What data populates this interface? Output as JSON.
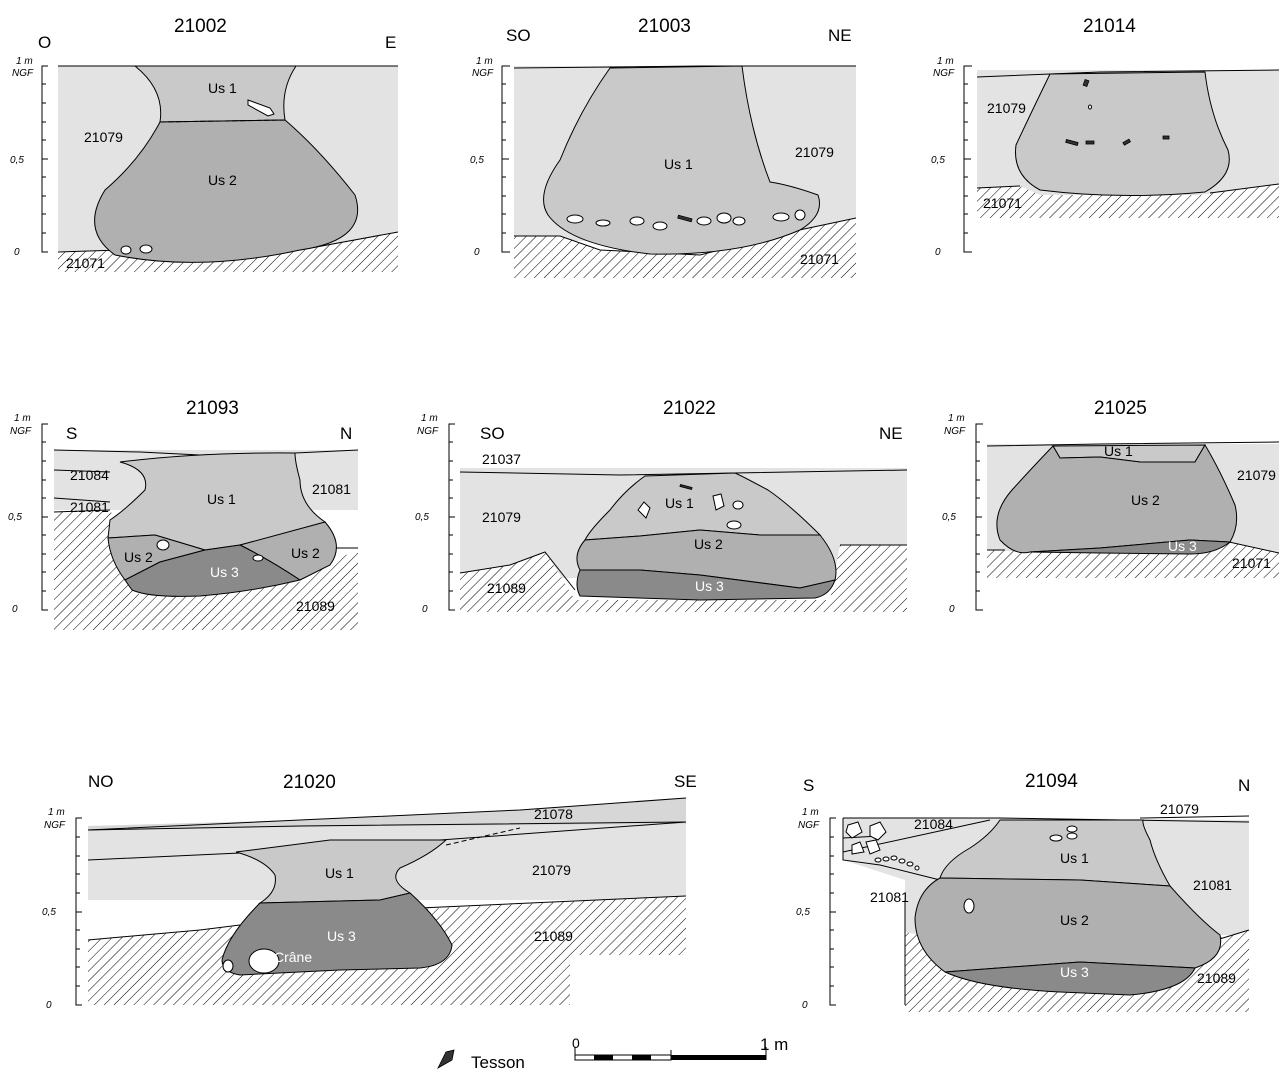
{
  "sections": [
    {
      "id": "21002",
      "left": "O",
      "right": "E",
      "labels": {
        "us1": "Us 1",
        "us2": "Us 2",
        "a": "21079",
        "b": "21071"
      },
      "axis": {
        "top": "1 m",
        "ngf": "NGF",
        "mid": "0,5",
        "zero": "0"
      }
    },
    {
      "id": "21003",
      "left": "SO",
      "right": "NE",
      "labels": {
        "us1": "Us 1",
        "a": "21079",
        "b": "21071"
      },
      "axis": {
        "top": "1 m",
        "ngf": "NGF",
        "mid": "0,5",
        "zero": "0"
      }
    },
    {
      "id": "21014",
      "labels": {
        "a": "21079",
        "b": "21071"
      },
      "axis": {
        "top": "1 m",
        "ngf": "NGF",
        "mid": "0,5",
        "zero": "0"
      }
    },
    {
      "id": "21093",
      "left": "S",
      "right": "N",
      "labels": {
        "us1": "Us 1",
        "us2a": "Us 2",
        "us2b": "Us 2",
        "us3": "Us 3",
        "a": "21084",
        "b": "21081",
        "c": "21081",
        "d": "21089"
      },
      "axis": {
        "top": "1 m",
        "ngf": "NGF",
        "mid": "0,5",
        "zero": "0"
      }
    },
    {
      "id": "21022",
      "left": "SO",
      "right": "NE",
      "labels": {
        "us1": "Us 1",
        "us2": "Us 2",
        "us3": "Us 3",
        "a": "21037",
        "b": "21079",
        "c": "21089"
      },
      "axis": {
        "top": "1 m",
        "ngf": "NGF",
        "mid": "0,5",
        "zero": "0"
      }
    },
    {
      "id": "21025",
      "labels": {
        "us1": "Us 1",
        "us2": "Us 2",
        "us3": "Us 3",
        "a": "21079",
        "b": "21071"
      },
      "axis": {
        "top": "1 m",
        "ngf": "NGF",
        "mid": "0,5",
        "zero": "0"
      }
    },
    {
      "id": "21020",
      "left": "NO",
      "right": "SE",
      "labels": {
        "us1": "Us 1",
        "us3": "Us 3",
        "crane": "Crâne",
        "a": "21078",
        "b": "21079",
        "c": "21089"
      },
      "axis": {
        "top": "1 m",
        "ngf": "NGF",
        "mid": "0,5",
        "zero": "0"
      }
    },
    {
      "id": "21094",
      "left": "S",
      "right": "N",
      "labels": {
        "us1": "Us 1",
        "us2": "Us 2",
        "us3": "Us 3",
        "a": "21084",
        "b": "21079",
        "c": "21081",
        "d": "21081",
        "e": "21089"
      },
      "axis": {
        "top": "1 m",
        "ngf": "NGF",
        "mid": "0,5",
        "zero": "0"
      }
    }
  ],
  "legend": {
    "tesson": "Tesson"
  },
  "scale": {
    "zero": "0",
    "one": "1 m"
  }
}
